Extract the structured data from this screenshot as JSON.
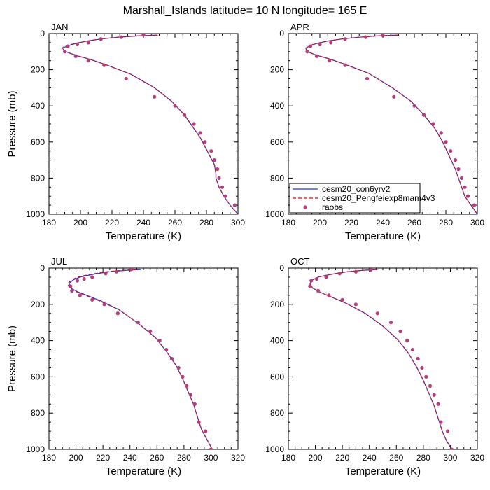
{
  "figure": {
    "title": "Marshall_Islands  latitude= 10 N longitude= 165 E"
  },
  "legend": {
    "entries": [
      {
        "label": "cesm20_con6yrv2",
        "color": "#2233dd",
        "style": "solid"
      },
      {
        "label": "cesm20_Pengfeiexp8mam4v3",
        "color": "#cc1111",
        "style": "dashed"
      },
      {
        "label": "raobs",
        "color": "#b0407a",
        "style": "marker"
      }
    ]
  },
  "chart_data": [
    {
      "type": "line",
      "title": "JAN",
      "xlabel": "Temperature (K)",
      "ylabel": "Pressure (mb)",
      "xlim": [
        180,
        300
      ],
      "ylim": [
        1000,
        0
      ],
      "xticks": [
        180,
        200,
        220,
        240,
        260,
        280,
        300
      ],
      "yticks": [
        0,
        200,
        400,
        600,
        800,
        1000
      ],
      "series": [
        {
          "name": "cesm20_con6yrv2",
          "color": "#2233dd",
          "x": [
            249,
            238,
            224,
            213,
            205,
            199,
            194,
            190,
            189,
            192,
            199,
            207,
            217,
            232,
            247,
            258,
            266,
            272,
            276,
            279,
            282,
            285,
            286,
            286,
            288,
            291,
            295,
            300
          ],
          "y": [
            8,
            12,
            20,
            30,
            40,
            50,
            62,
            75,
            90,
            105,
            125,
            145,
            175,
            225,
            300,
            375,
            450,
            525,
            575,
            625,
            675,
            725,
            775,
            800,
            850,
            900,
            950,
            1000
          ]
        },
        {
          "name": "cesm20_Pengfeiexp8mam4v3",
          "color": "#cc1111",
          "x": [
            249,
            238,
            224,
            213,
            205,
            199,
            193,
            189,
            188,
            192,
            199,
            207,
            217,
            232,
            247,
            258,
            266,
            272,
            276,
            279,
            282,
            285,
            286,
            286,
            288,
            291,
            295,
            300
          ],
          "y": [
            8,
            12,
            20,
            30,
            40,
            50,
            62,
            75,
            90,
            105,
            125,
            145,
            175,
            225,
            300,
            375,
            450,
            525,
            575,
            625,
            675,
            725,
            775,
            800,
            850,
            900,
            950,
            1000
          ]
        },
        {
          "name": "raobs",
          "color": "#b0407a",
          "marker": true,
          "x": [
            240,
            226,
            213,
            205,
            198,
            192,
            190,
            197,
            205,
            215,
            229,
            247,
            260,
            266,
            272,
            276,
            279,
            283,
            285,
            287,
            288,
            290,
            292,
            298
          ],
          "y": [
            7,
            20,
            30,
            50,
            60,
            70,
            100,
            125,
            150,
            175,
            250,
            350,
            400,
            450,
            500,
            550,
            600,
            650,
            700,
            750,
            800,
            850,
            900,
            950
          ]
        }
      ]
    },
    {
      "type": "line",
      "title": "APR",
      "xlabel": "Temperature (K)",
      "ylabel": "",
      "xlim": [
        180,
        300
      ],
      "ylim": [
        1000,
        0
      ],
      "xticks": [
        180,
        200,
        220,
        240,
        260,
        280,
        300
      ],
      "yticks": [
        0,
        200,
        400,
        600,
        800,
        1000
      ],
      "series": [
        {
          "name": "cesm20_con6yrv2",
          "color": "#2233dd",
          "x": [
            250,
            238,
            225,
            214,
            206,
            200,
            195,
            191,
            192,
            198,
            206,
            216,
            231,
            246,
            258,
            266,
            273,
            278,
            282,
            286,
            289,
            292,
            296,
            300
          ],
          "y": [
            8,
            12,
            20,
            30,
            40,
            50,
            62,
            80,
            100,
            120,
            140,
            170,
            220,
            300,
            375,
            450,
            525,
            600,
            675,
            750,
            825,
            900,
            950,
            1000
          ]
        },
        {
          "name": "cesm20_Pengfeiexp8mam4v3",
          "color": "#cc1111",
          "x": [
            250,
            238,
            225,
            214,
            206,
            200,
            195,
            191,
            192,
            198,
            206,
            216,
            231,
            246,
            258,
            266,
            273,
            278,
            282,
            286,
            289,
            292,
            296,
            300
          ],
          "y": [
            8,
            12,
            20,
            30,
            40,
            50,
            62,
            80,
            100,
            120,
            140,
            170,
            220,
            300,
            375,
            450,
            525,
            600,
            675,
            750,
            825,
            900,
            950,
            1000
          ]
        },
        {
          "name": "raobs",
          "color": "#b0407a",
          "marker": true,
          "x": [
            240,
            229,
            216,
            207,
            200,
            194,
            192,
            198,
            206,
            216,
            230,
            247,
            260,
            266,
            272,
            277,
            280,
            283,
            286,
            288,
            290,
            292,
            294,
            298
          ],
          "y": [
            10,
            20,
            30,
            50,
            60,
            70,
            100,
            125,
            150,
            175,
            250,
            350,
            400,
            450,
            500,
            550,
            600,
            650,
            700,
            750,
            800,
            850,
            900,
            950
          ]
        }
      ]
    },
    {
      "type": "line",
      "title": "JUL",
      "xlabel": "Temperature (K)",
      "ylabel": "Pressure (mb)",
      "xlim": [
        180,
        320
      ],
      "ylim": [
        1000,
        0
      ],
      "xticks": [
        180,
        200,
        220,
        240,
        260,
        280,
        300,
        320
      ],
      "yticks": [
        0,
        200,
        400,
        600,
        800,
        1000
      ],
      "series": [
        {
          "name": "cesm20_con6yrv2",
          "color": "#2233dd",
          "x": [
            248,
            238,
            226,
            216,
            209,
            203,
            198,
            195,
            196,
            201,
            208,
            218,
            232,
            247,
            259,
            267,
            274,
            279,
            283,
            287,
            290,
            293,
            297,
            301
          ],
          "y": [
            8,
            12,
            20,
            30,
            40,
            50,
            65,
            85,
            110,
            130,
            150,
            180,
            230,
            310,
            385,
            460,
            535,
            610,
            680,
            750,
            820,
            890,
            945,
            1000
          ]
        },
        {
          "name": "cesm20_Pengfeiexp8mam4v3",
          "color": "#cc1111",
          "x": [
            245,
            235,
            223,
            214,
            207,
            201,
            197,
            194,
            195,
            200,
            207,
            217,
            232,
            247,
            259,
            267,
            274,
            279,
            283,
            287,
            290,
            293,
            297,
            301
          ],
          "y": [
            8,
            12,
            20,
            30,
            40,
            50,
            65,
            85,
            110,
            130,
            150,
            180,
            230,
            310,
            385,
            460,
            535,
            610,
            680,
            750,
            820,
            890,
            945,
            1000
          ]
        },
        {
          "name": "raobs",
          "color": "#b0407a",
          "marker": true,
          "x": [
            241,
            230,
            222,
            212,
            206,
            201,
            196,
            197,
            203,
            212,
            221,
            231,
            246,
            255,
            262,
            267,
            271,
            276,
            279,
            282,
            285,
            288,
            291,
            296,
            300
          ],
          "y": [
            7,
            20,
            30,
            50,
            60,
            70,
            100,
            125,
            150,
            175,
            200,
            250,
            300,
            350,
            400,
            450,
            500,
            550,
            600,
            650,
            700,
            750,
            850,
            900,
            1000
          ]
        }
      ]
    },
    {
      "type": "line",
      "title": "OCT",
      "xlabel": "Temperature (K)",
      "ylabel": "",
      "xlim": [
        180,
        320
      ],
      "ylim": [
        1000,
        0
      ],
      "xticks": [
        180,
        200,
        220,
        240,
        260,
        280,
        300,
        320
      ],
      "yticks": [
        0,
        200,
        400,
        600,
        800,
        1000
      ],
      "series": [
        {
          "name": "cesm20_con6yrv2",
          "color": "#2233dd",
          "x": [
            246,
            236,
            224,
            215,
            208,
            202,
            198,
            196,
            198,
            204,
            212,
            223,
            237,
            250,
            261,
            269,
            275,
            280,
            284,
            288,
            291,
            294,
            297,
            301
          ],
          "y": [
            8,
            12,
            20,
            30,
            40,
            50,
            65,
            85,
            110,
            135,
            160,
            195,
            250,
            320,
            395,
            470,
            545,
            620,
            690,
            760,
            830,
            900,
            950,
            1000
          ]
        },
        {
          "name": "cesm20_Pengfeiexp8mam4v3",
          "color": "#cc1111",
          "x": [
            246,
            236,
            224,
            215,
            208,
            202,
            198,
            196,
            198,
            204,
            212,
            223,
            237,
            250,
            261,
            269,
            275,
            280,
            284,
            288,
            291,
            294,
            297,
            301
          ],
          "y": [
            8,
            12,
            20,
            30,
            40,
            50,
            65,
            85,
            110,
            135,
            160,
            195,
            250,
            320,
            395,
            470,
            545,
            620,
            690,
            760,
            830,
            900,
            950,
            1000
          ]
        },
        {
          "name": "raobs",
          "color": "#b0407a",
          "marker": true,
          "x": [
            241,
            230,
            218,
            208,
            201,
            197,
            196,
            202,
            210,
            220,
            230,
            246,
            256,
            263,
            268,
            272,
            276,
            279,
            282,
            285,
            288,
            291,
            293,
            298,
            301
          ],
          "y": [
            10,
            20,
            30,
            50,
            60,
            70,
            100,
            125,
            150,
            175,
            200,
            250,
            300,
            350,
            400,
            450,
            500,
            550,
            600,
            650,
            700,
            750,
            850,
            900,
            1000
          ]
        }
      ]
    }
  ]
}
